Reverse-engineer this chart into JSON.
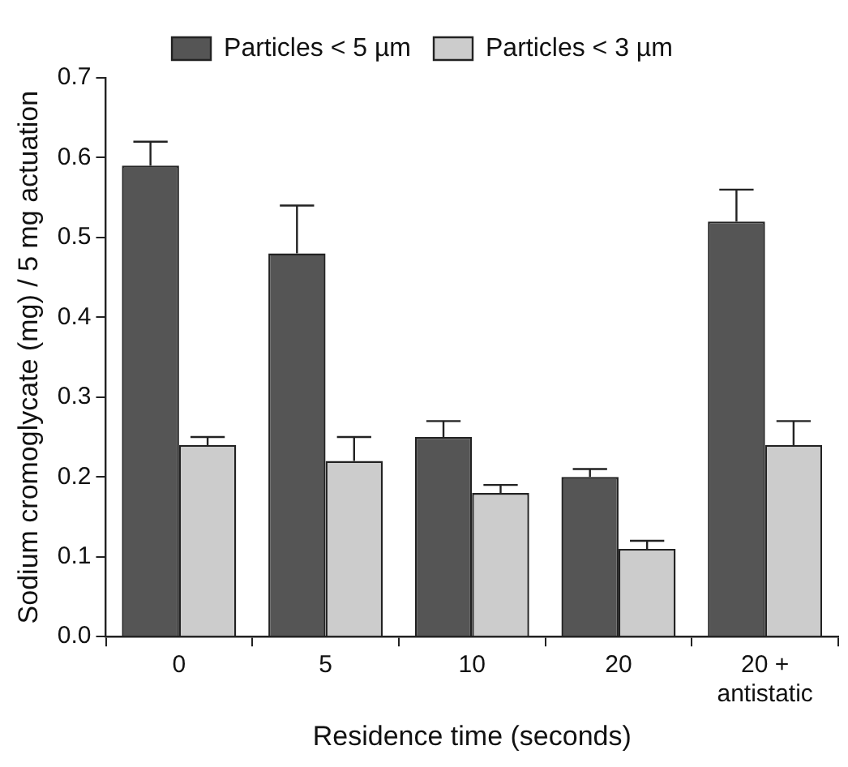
{
  "chart_data": {
    "type": "bar",
    "xlabel": "Residence time (seconds)",
    "ylabel": "Sodium cromoglycate (mg) / 5 mg actuation",
    "categories": [
      "0",
      "5",
      "10",
      "20",
      "20 +\nantistatic"
    ],
    "series": [
      {
        "name": "Particles < 5 µm",
        "color": "#555555",
        "values": [
          0.59,
          0.48,
          0.25,
          0.2,
          0.52
        ],
        "errors": [
          [
            0.59,
            0.62
          ],
          [
            0.48,
            0.54
          ],
          [
            0.25,
            0.27
          ],
          [
            0.2,
            0.21
          ],
          [
            0.52,
            0.56
          ]
        ]
      },
      {
        "name": "Particles < 3 µm",
        "color": "#cccccc",
        "values": [
          0.24,
          0.22,
          0.18,
          0.11,
          0.24
        ],
        "errors": [
          [
            0.24,
            0.25
          ],
          [
            0.22,
            0.25
          ],
          [
            0.18,
            0.19
          ],
          [
            0.11,
            0.12
          ],
          [
            0.24,
            0.27
          ]
        ]
      }
    ],
    "ylim": [
      0,
      0.7
    ],
    "yticks": [
      {
        "value": 0,
        "label": "0.0"
      },
      0.1,
      0.2,
      0.3,
      0.4,
      0.5,
      0.6,
      0.7
    ],
    "grid": false,
    "legend": "top"
  }
}
